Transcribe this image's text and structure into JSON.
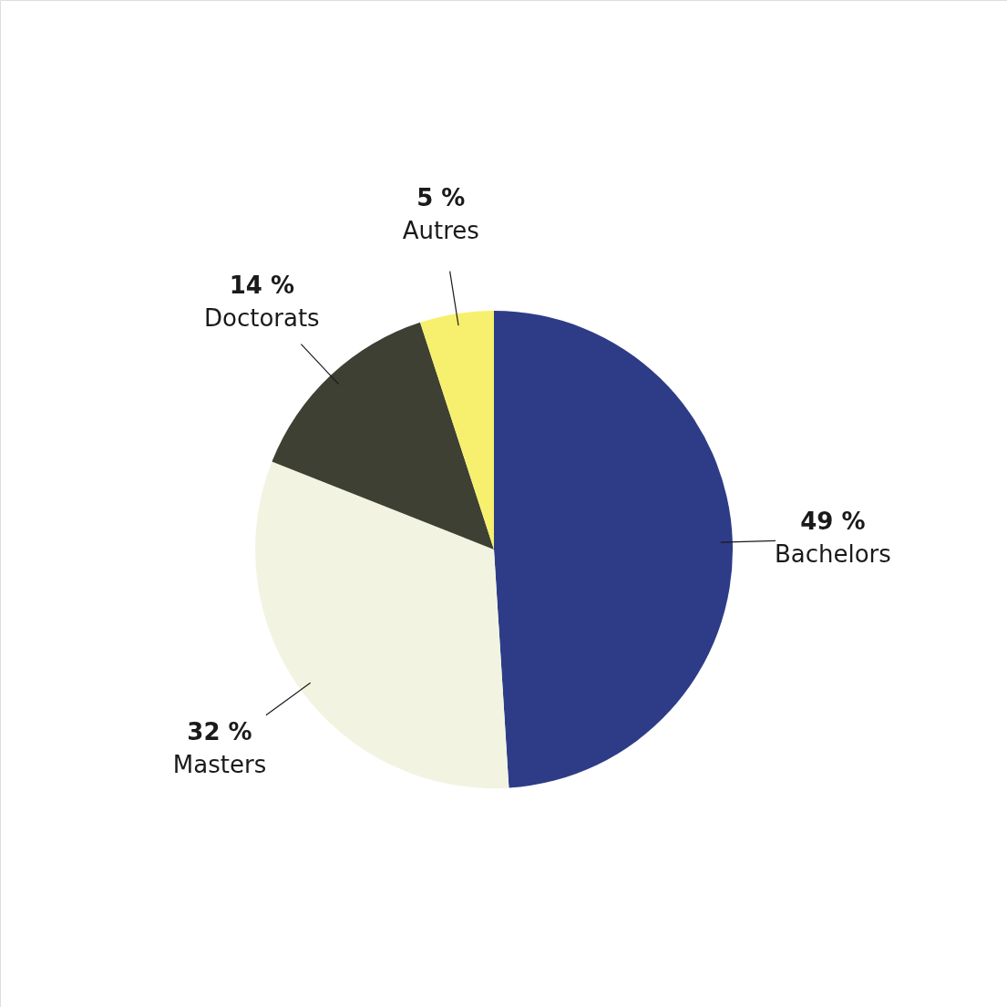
{
  "chart_data": {
    "type": "pie",
    "categories": [
      "Bachelors",
      "Masters",
      "Doctorats",
      "Autres"
    ],
    "values": [
      49,
      32,
      14,
      5
    ],
    "colors": [
      "#2e3c87",
      "#f2f4e1",
      "#3e4033",
      "#f6f06e"
    ],
    "value_labels": [
      "49 %",
      "32 %",
      "14 %",
      "5 %"
    ]
  }
}
